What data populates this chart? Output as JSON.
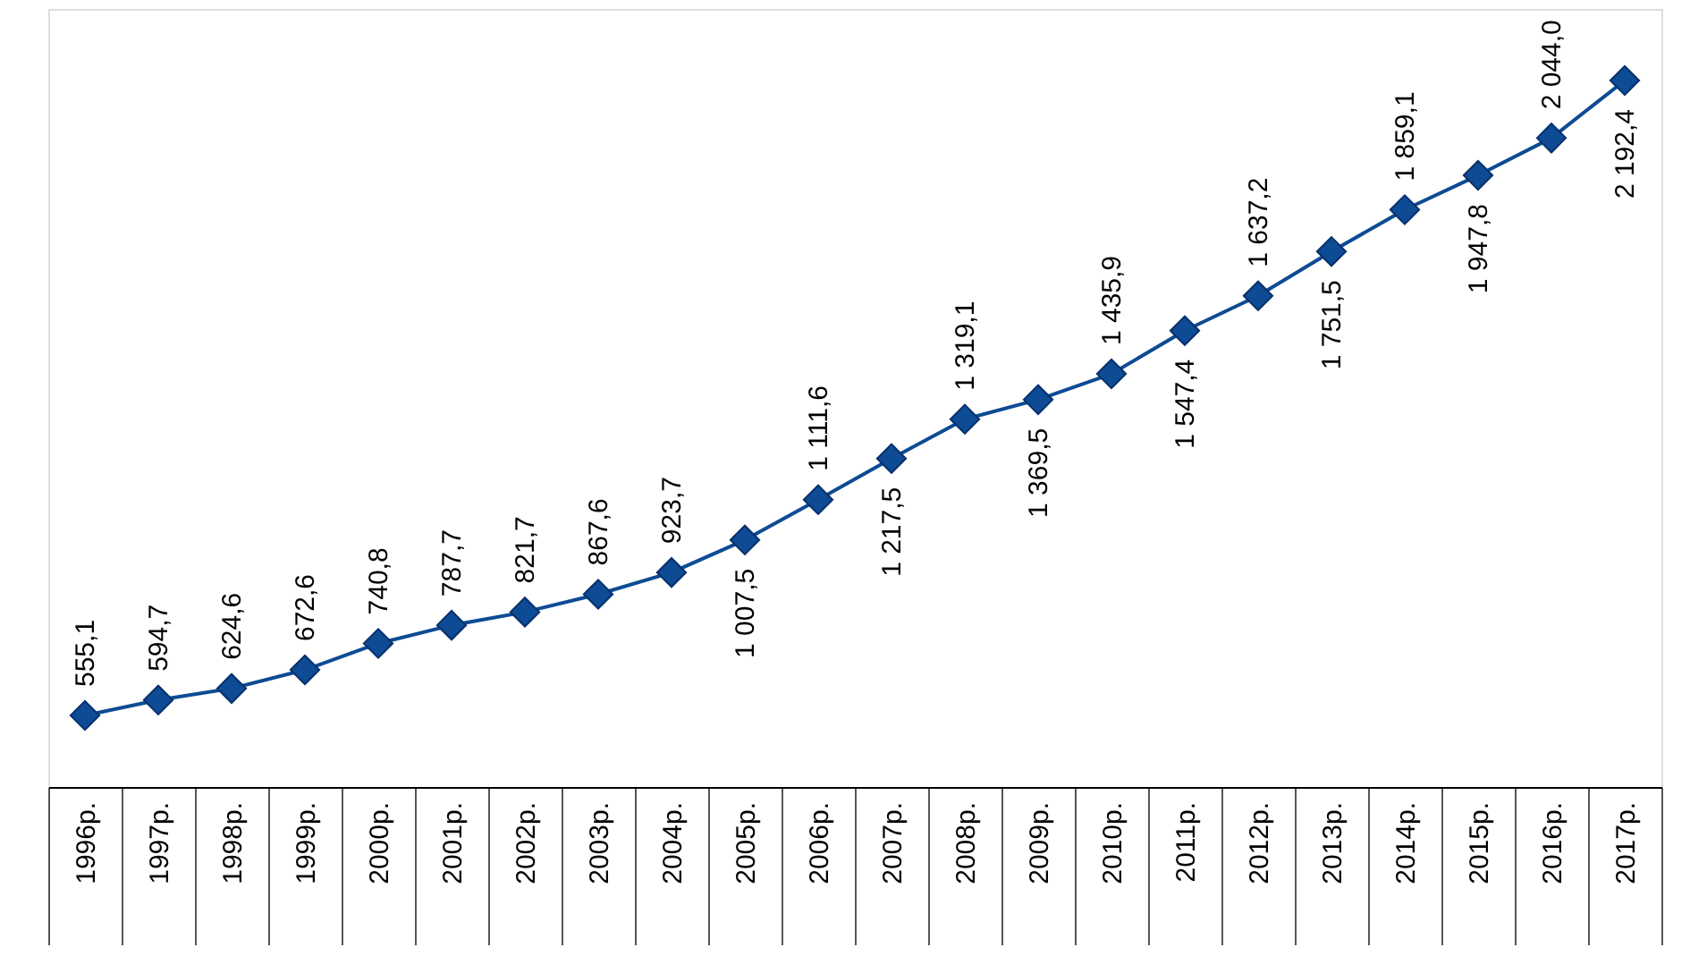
{
  "chart_data": {
    "type": "line",
    "categories": [
      "1996р.",
      "1997р.",
      "1998р.",
      "1999р.",
      "2000р.",
      "2001р.",
      "2002р.",
      "2003р.",
      "2004р.",
      "2005р.",
      "2006р.",
      "2007р.",
      "2008р.",
      "2009р.",
      "2010р.",
      "2011р.",
      "2012р.",
      "2013р.",
      "2014р.",
      "2015р.",
      "2016р.",
      "2017р."
    ],
    "values": [
      555.1,
      594.7,
      624.6,
      672.6,
      740.8,
      787.7,
      821.7,
      867.6,
      923.7,
      1007.5,
      1111.6,
      1217.5,
      1319.1,
      1369.5,
      1435.9,
      1547.4,
      1637.2,
      1751.5,
      1859.1,
      1947.8,
      2044.0,
      2192.4
    ],
    "value_labels": [
      "555,1",
      "594,7",
      "624,6",
      "672,6",
      "740,8",
      "787,7",
      "821,7",
      "867,6",
      "923,7",
      "1 007,5",
      "1 111,6",
      "1 217,5",
      "1 319,1",
      "1 369,5",
      "1 435,9",
      "1 547,4",
      "1 637,2",
      "1 751,5",
      "1 859,1",
      "1 947,8",
      "2 044,0",
      "2 192,4"
    ],
    "color": "#0d4b94",
    "marker": "diamond",
    "line_style": "solid"
  }
}
